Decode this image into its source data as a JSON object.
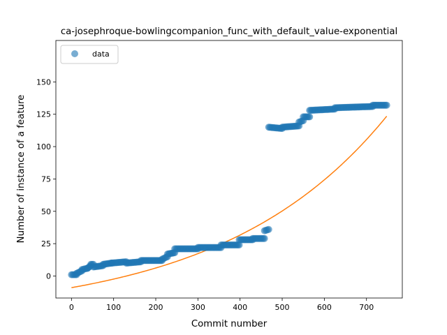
{
  "chart_data": {
    "type": "scatter",
    "title": "ca-josephroque-bowlingcompanion_func_with_default_value-exponential",
    "xlabel": "Commit number",
    "ylabel": "Number of instance of a feature",
    "xlim": [
      -37,
      785
    ],
    "ylim": [
      -17,
      182
    ],
    "xticks": [
      0,
      100,
      200,
      300,
      400,
      500,
      600,
      700
    ],
    "yticks": [
      0,
      25,
      50,
      75,
      100,
      125,
      150
    ],
    "grid": false,
    "legend": {
      "placement": "top-left",
      "entries": [
        "data"
      ]
    },
    "series": [
      {
        "name": "data",
        "kind": "scatter",
        "color": "#1f77b4",
        "alpha": 0.6,
        "segments": [
          {
            "x0": 0,
            "x1": 12,
            "y0": 1,
            "y1": 1
          },
          {
            "x0": 12,
            "x1": 25,
            "y0": 2,
            "y1": 4
          },
          {
            "x0": 25,
            "x1": 38,
            "y0": 5,
            "y1": 6
          },
          {
            "x0": 38,
            "x1": 46,
            "y0": 6,
            "y1": 8
          },
          {
            "x0": 46,
            "x1": 52,
            "y0": 9,
            "y1": 9
          },
          {
            "x0": 52,
            "x1": 75,
            "y0": 7,
            "y1": 8
          },
          {
            "x0": 75,
            "x1": 95,
            "y0": 9,
            "y1": 10
          },
          {
            "x0": 95,
            "x1": 130,
            "y0": 10,
            "y1": 11
          },
          {
            "x0": 130,
            "x1": 165,
            "y0": 10,
            "y1": 11
          },
          {
            "x0": 165,
            "x1": 215,
            "y0": 12,
            "y1": 12
          },
          {
            "x0": 215,
            "x1": 228,
            "y0": 13,
            "y1": 15
          },
          {
            "x0": 228,
            "x1": 245,
            "y0": 17,
            "y1": 18
          },
          {
            "x0": 245,
            "x1": 300,
            "y0": 21,
            "y1": 21
          },
          {
            "x0": 300,
            "x1": 355,
            "y0": 22,
            "y1": 22
          },
          {
            "x0": 355,
            "x1": 398,
            "y0": 24,
            "y1": 24
          },
          {
            "x0": 398,
            "x1": 430,
            "y0": 28,
            "y1": 28
          },
          {
            "x0": 430,
            "x1": 458,
            "y0": 29,
            "y1": 29
          },
          {
            "x0": 458,
            "x1": 468,
            "y0": 35,
            "y1": 36
          },
          {
            "x0": 468,
            "x1": 500,
            "y0": 115,
            "y1": 114
          },
          {
            "x0": 500,
            "x1": 540,
            "y0": 115,
            "y1": 116
          },
          {
            "x0": 540,
            "x1": 550,
            "y0": 119,
            "y1": 120
          },
          {
            "x0": 550,
            "x1": 565,
            "y0": 123,
            "y1": 123
          },
          {
            "x0": 565,
            "x1": 625,
            "y0": 128,
            "y1": 129
          },
          {
            "x0": 625,
            "x1": 715,
            "y0": 130,
            "y1": 131
          },
          {
            "x0": 715,
            "x1": 748,
            "y0": 132,
            "y1": 132
          }
        ]
      },
      {
        "name": "",
        "kind": "line",
        "color": "#ff7f0e",
        "fit": {
          "model": "exponential",
          "a": 22.5,
          "b": 0.00258,
          "c": -31.5
        },
        "x_range": [
          0,
          748
        ]
      }
    ]
  }
}
